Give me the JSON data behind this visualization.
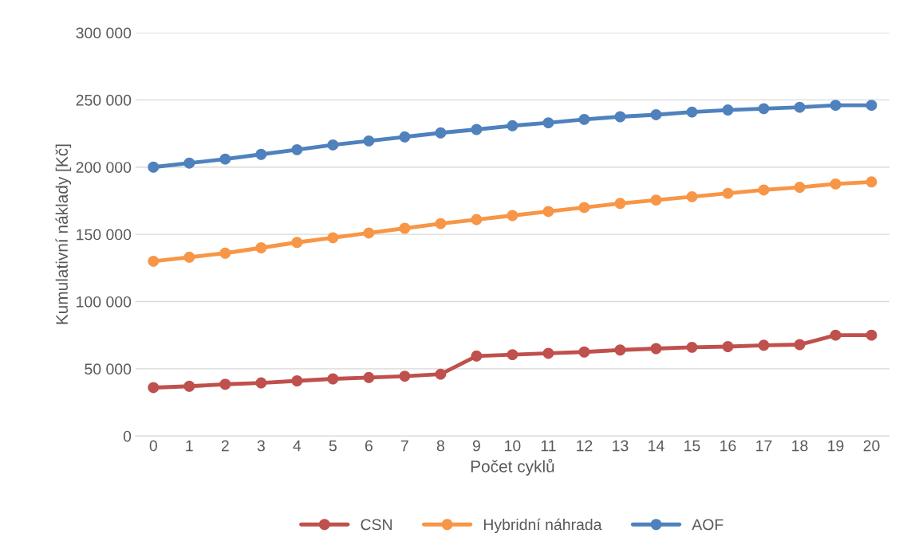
{
  "chart_data": {
    "type": "line",
    "xlabel": "Počet cyklů",
    "ylabel": "Kumulativní náklady [Kč]",
    "categories": [
      "0",
      "1",
      "2",
      "3",
      "4",
      "5",
      "6",
      "7",
      "8",
      "9",
      "10",
      "11",
      "12",
      "13",
      "14",
      "15",
      "16",
      "17",
      "18",
      "19",
      "20"
    ],
    "series": [
      {
        "name": "CSN",
        "color": "#c0504d",
        "values": [
          36000,
          37000,
          38500,
          39500,
          41000,
          42500,
          43500,
          44500,
          46000,
          59500,
          60500,
          61500,
          62500,
          64000,
          65000,
          66000,
          66500,
          67500,
          68000,
          75000,
          75000
        ]
      },
      {
        "name": "Hybridní náhrada",
        "color": "#f79646",
        "values": [
          130000,
          133000,
          136000,
          140000,
          144000,
          147500,
          151000,
          154500,
          158000,
          161000,
          164000,
          167000,
          170000,
          173000,
          175500,
          178000,
          180500,
          183000,
          185000,
          187500,
          189000
        ]
      },
      {
        "name": "AOF",
        "color": "#4f81bd",
        "values": [
          200000,
          203000,
          206000,
          209500,
          213000,
          216500,
          219500,
          222500,
          225500,
          228000,
          230800,
          233000,
          235500,
          237500,
          239000,
          241000,
          242500,
          243500,
          244500,
          246000,
          246000
        ]
      }
    ],
    "ylim": [
      0,
      300000
    ],
    "yticks": [
      0,
      {
        "value": 50000,
        "label": "50 000"
      },
      {
        "value": 100000,
        "label": "100 000"
      },
      {
        "value": 150000,
        "label": "150 000"
      },
      {
        "value": 200000,
        "label": "200 000"
      },
      {
        "value": 250000,
        "label": "250 000"
      },
      {
        "value": 300000,
        "label": "300 000"
      }
    ],
    "grid": "y",
    "legend": "bottom",
    "marker": "circle",
    "line_style": "solid"
  }
}
